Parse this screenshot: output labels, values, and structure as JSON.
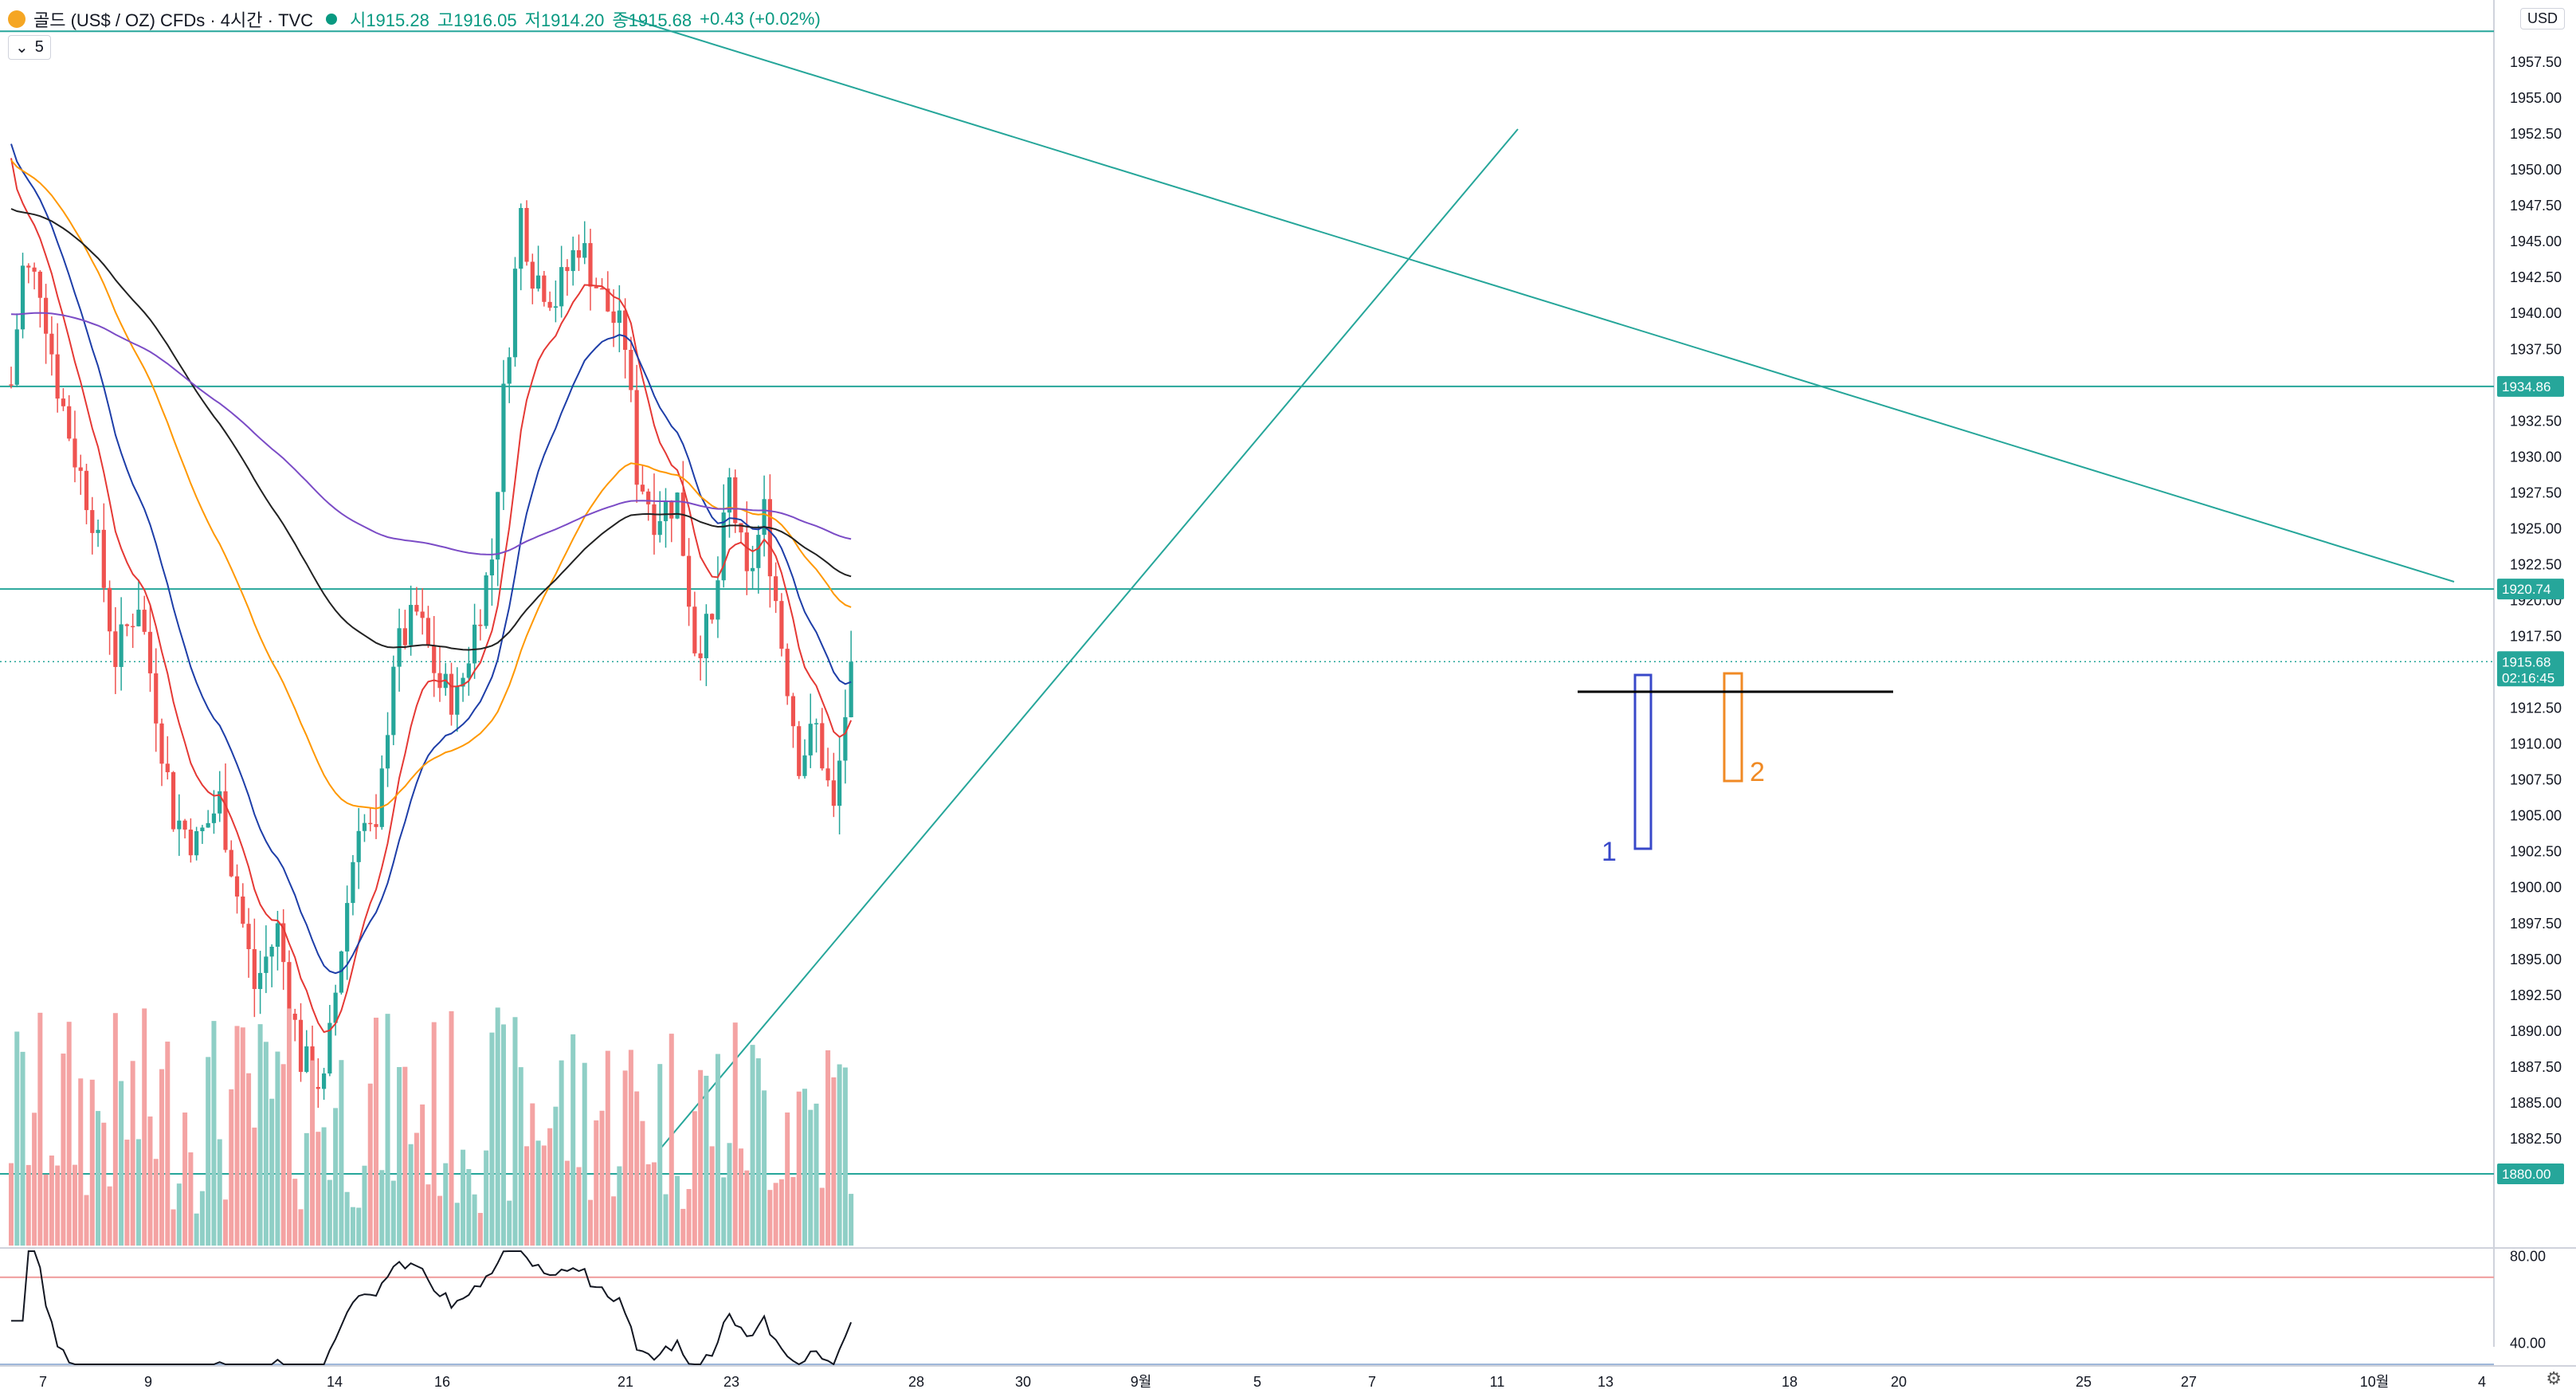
{
  "header": {
    "symbol": "골드 (US$ / OZ) CFDs · 4시간 · TVC",
    "open": "시1915.28",
    "high": "고1916.05",
    "low": "저1914.20",
    "close": "종1915.68",
    "change": "+0.43 (+0.02%)",
    "indicator_count": "5",
    "currency": "USD"
  },
  "colors": {
    "up": "#26a69a",
    "down": "#ef5350",
    "vol_up": "#8fcfc6",
    "vol_down": "#f4a3a3",
    "ema_red": "#e53935",
    "ema_blue": "#1e3ea8",
    "ema_orange": "#ff9800",
    "ema_black": "#222222",
    "ema_purple": "#7b4cc6",
    "trendline": "#26a69a",
    "rsi": "#131722",
    "rsi_upper": "#ef9a9a",
    "rsi_lower": "#9fb7d9"
  },
  "chart_data": {
    "type": "candlestick",
    "ylim": [
      1876.5,
      1961
    ],
    "price_ticks": [
      "1957.50",
      "1955.00",
      "1952.50",
      "1950.00",
      "1947.50",
      "1945.00",
      "1942.50",
      "1940.00",
      "1937.50",
      "1935.00",
      "1932.50",
      "1930.00",
      "1927.50",
      "1925.00",
      "1922.50",
      "1920.00",
      "1917.50",
      "1915.00",
      "1912.50",
      "1910.00",
      "1907.50",
      "1905.00",
      "1902.50",
      "1900.00",
      "1897.50",
      "1895.00",
      "1892.50",
      "1890.00",
      "1887.50",
      "1885.00",
      "1882.50"
    ],
    "x_ticks": [
      "7",
      "9",
      "14",
      "16",
      "21",
      "23",
      "28",
      "30",
      "9월",
      "5",
      "7",
      "11",
      "13",
      "18",
      "20",
      "25",
      "27",
      "10월",
      "4"
    ],
    "price_labels": [
      {
        "value": 1934.86,
        "text": "1934.86",
        "color": "#26a69a"
      },
      {
        "value": 1920.74,
        "text": "1920.74",
        "color": "#26a69a"
      },
      {
        "value": 1880.0,
        "text": "1880.00",
        "color": "#26a69a"
      },
      {
        "value": 1915.68,
        "text": "1915.68",
        "sub": "02:16:45",
        "color": "#26a69a"
      }
    ],
    "horizontal_lines": [
      1959.6,
      1934.86,
      1920.74,
      1880.0
    ],
    "last_price": 1915.68,
    "countdown": "02:16:45",
    "annotations": [
      {
        "text": "1",
        "color": "#3848c9"
      },
      {
        "text": "2",
        "color": "#f08a24"
      }
    ],
    "rsi": {
      "ylim": [
        30,
        82
      ],
      "levels": [
        70,
        30
      ],
      "ticks": [
        "80.00",
        "40.00"
      ]
    }
  }
}
